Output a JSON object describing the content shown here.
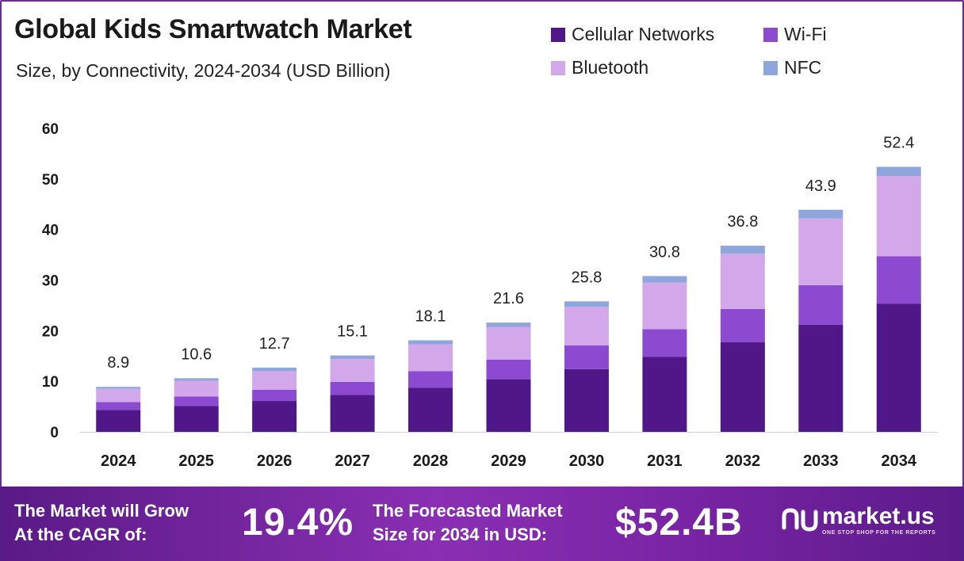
{
  "header": {
    "title": "Global Kids Smartwatch Market",
    "subtitle": "Size, by Connectivity, 2024-2034 (USD Billion)"
  },
  "colors": {
    "cellular": "#4f1787",
    "wifi": "#8b4ad0",
    "bluetooth": "#d3a8ea",
    "nfc": "#8fa6dc",
    "footer": "#7a24a6"
  },
  "legend": [
    {
      "name": "Cellular Networks",
      "color": "#4f1787"
    },
    {
      "name": "Wi-Fi",
      "color": "#8b4ad0"
    },
    {
      "name": "Bluetooth",
      "color": "#d3a8ea"
    },
    {
      "name": "NFC",
      "color": "#8fa6dc"
    }
  ],
  "chart_data": {
    "type": "bar",
    "stacked": true,
    "title": "Global Kids Smartwatch Market",
    "subtitle": "Size, by Connectivity, 2024-2034 (USD Billion)",
    "categories": [
      "2024",
      "2025",
      "2026",
      "2027",
      "2028",
      "2029",
      "2030",
      "2031",
      "2032",
      "2033",
      "2034"
    ],
    "series": [
      {
        "name": "Cellular Networks",
        "values": [
          4.3,
          5.1,
          6.1,
          7.3,
          8.7,
          10.4,
          12.4,
          14.8,
          17.7,
          21.2,
          25.3
        ]
      },
      {
        "name": "Wi-Fi",
        "values": [
          1.6,
          1.9,
          2.2,
          2.6,
          3.3,
          3.9,
          4.7,
          5.5,
          6.6,
          7.8,
          9.4
        ]
      },
      {
        "name": "Bluetooth",
        "values": [
          2.6,
          3.1,
          3.7,
          4.5,
          5.3,
          6.4,
          7.6,
          9.2,
          10.9,
          13.2,
          15.9
        ]
      },
      {
        "name": "NFC",
        "values": [
          0.4,
          0.5,
          0.7,
          0.7,
          0.8,
          0.9,
          1.1,
          1.3,
          1.6,
          1.7,
          1.8
        ]
      }
    ],
    "totals": [
      "8.9",
      "10.6",
      "12.7",
      "15.1",
      "18.1",
      "21.6",
      "25.8",
      "30.8",
      "36.8",
      "43.9",
      "52.4"
    ],
    "yticks": [
      "0",
      "10",
      "20",
      "30",
      "40",
      "50",
      "60"
    ],
    "ylim": [
      0,
      60
    ],
    "grid": false,
    "legend_position": "top-right"
  },
  "footer": {
    "cagr_label_line1": "The Market will Grow",
    "cagr_label_line2": "At the CAGR of:",
    "cagr_value": "19.4%",
    "forecast_label_line1": "The Forecasted Market",
    "forecast_label_line2": "Size for 2034 in USD:",
    "forecast_value": "$52.4B",
    "brand": "market.us",
    "brand_tagline": "ONE STOP SHOP FOR THE REPORTS"
  }
}
